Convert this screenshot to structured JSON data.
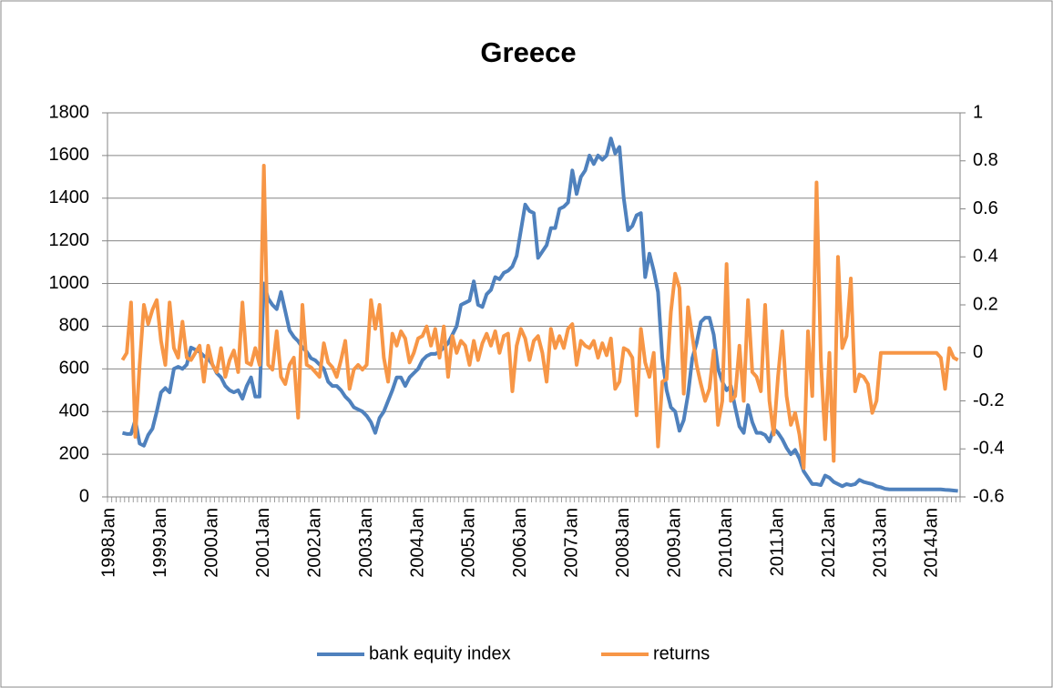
{
  "chart_data": {
    "type": "line",
    "title": "Greece",
    "categories": [
      "1998Jan",
      null,
      null,
      null,
      null,
      null,
      null,
      null,
      null,
      null,
      null,
      null,
      "1999Jan",
      null,
      null,
      null,
      null,
      null,
      null,
      null,
      null,
      null,
      null,
      null,
      "2000Jan",
      null,
      null,
      null,
      null,
      null,
      null,
      null,
      null,
      null,
      null,
      null,
      "2001Jan",
      null,
      null,
      null,
      null,
      null,
      null,
      null,
      null,
      null,
      null,
      null,
      "2002Jan",
      null,
      null,
      null,
      null,
      null,
      null,
      null,
      null,
      null,
      null,
      null,
      "2003Jan",
      null,
      null,
      null,
      null,
      null,
      null,
      null,
      null,
      null,
      null,
      null,
      "2004Jan",
      null,
      null,
      null,
      null,
      null,
      null,
      null,
      null,
      null,
      null,
      null,
      "2005Jan",
      null,
      null,
      null,
      null,
      null,
      null,
      null,
      null,
      null,
      null,
      null,
      "2006Jan",
      null,
      null,
      null,
      null,
      null,
      null,
      null,
      null,
      null,
      null,
      null,
      "2007Jan",
      null,
      null,
      null,
      null,
      null,
      null,
      null,
      null,
      null,
      null,
      null,
      "2008Jan",
      null,
      null,
      null,
      null,
      null,
      null,
      null,
      null,
      null,
      null,
      null,
      "2009Jan",
      null,
      null,
      null,
      null,
      null,
      null,
      null,
      null,
      null,
      null,
      null,
      "2010Jan",
      null,
      null,
      null,
      null,
      null,
      null,
      null,
      null,
      null,
      null,
      null,
      "2011Jan",
      null,
      null,
      null,
      null,
      null,
      null,
      null,
      null,
      null,
      null,
      null,
      "2012Jan",
      null,
      null,
      null,
      null,
      null,
      null,
      null,
      null,
      null,
      null,
      null,
      "2013Jan",
      null,
      null,
      null,
      null,
      null,
      null,
      null,
      null,
      null,
      null,
      null,
      "2014Jan",
      null,
      null,
      null,
      null,
      null,
      null
    ],
    "series": [
      {
        "name": "bank equity index",
        "color": "#4f81bd",
        "axis": "y",
        "values": [
          null,
          null,
          null,
          300,
          295,
          295,
          360,
          250,
          240,
          290,
          320,
          400,
          490,
          510,
          490,
          600,
          610,
          600,
          620,
          700,
          690,
          680,
          660,
          650,
          620,
          580,
          560,
          520,
          500,
          490,
          500,
          460,
          520,
          560,
          470,
          470,
          1000,
          930,
          900,
          880,
          960,
          870,
          780,
          750,
          730,
          700,
          680,
          650,
          640,
          620,
          600,
          540,
          520,
          520,
          500,
          470,
          450,
          420,
          410,
          400,
          380,
          350,
          300,
          370,
          400,
          450,
          500,
          560,
          560,
          520,
          560,
          580,
          600,
          640,
          660,
          670,
          670,
          680,
          700,
          720,
          760,
          800,
          900,
          910,
          920,
          1010,
          900,
          890,
          950,
          970,
          1030,
          1020,
          1050,
          1060,
          1080,
          1130,
          1250,
          1370,
          1340,
          1330,
          1120,
          1150,
          1180,
          1260,
          1260,
          1350,
          1360,
          1380,
          1530,
          1420,
          1500,
          1530,
          1600,
          1560,
          1600,
          1580,
          1600,
          1680,
          1610,
          1640,
          1400,
          1250,
          1270,
          1320,
          1330,
          1030,
          1140,
          1060,
          960,
          650,
          500,
          420,
          400,
          310,
          360,
          480,
          650,
          720,
          820,
          840,
          840,
          760,
          600,
          540,
          500,
          520,
          420,
          330,
          300,
          430,
          350,
          300,
          300,
          290,
          260,
          320,
          300,
          270,
          230,
          200,
          220,
          180,
          120,
          90,
          60,
          60,
          55,
          100,
          90,
          70,
          60,
          50,
          60,
          55,
          60,
          80,
          70,
          65,
          60,
          50,
          45,
          38,
          35,
          35,
          35,
          35,
          35,
          35,
          35,
          35,
          35,
          35,
          35,
          35,
          35,
          33,
          32,
          30,
          28
        ]
      },
      {
        "name": "returns",
        "color": "#f79646",
        "axis": "y2",
        "values": [
          null,
          null,
          null,
          -0.03,
          0.0,
          0.21,
          -0.35,
          -0.05,
          0.2,
          0.12,
          0.18,
          0.22,
          0.05,
          -0.05,
          0.21,
          0.02,
          -0.02,
          0.13,
          -0.02,
          -0.03,
          0.0,
          0.03,
          -0.12,
          0.03,
          -0.05,
          -0.08,
          0.02,
          -0.1,
          -0.03,
          0.01,
          -0.08,
          0.21,
          -0.04,
          -0.05,
          0.02,
          -0.05,
          0.78,
          -0.05,
          -0.07,
          0.09,
          -0.1,
          -0.13,
          -0.05,
          -0.02,
          -0.27,
          0.2,
          -0.05,
          -0.06,
          -0.08,
          -0.1,
          0.04,
          -0.04,
          -0.06,
          -0.1,
          -0.03,
          0.05,
          -0.15,
          -0.07,
          -0.05,
          -0.07,
          -0.05,
          0.22,
          0.1,
          0.2,
          -0.02,
          -0.12,
          0.08,
          0.03,
          0.09,
          0.06,
          -0.04,
          0.0,
          0.06,
          0.07,
          0.11,
          0.03,
          0.1,
          -0.02,
          0.11,
          -0.1,
          0.07,
          0.0,
          0.05,
          0.03,
          -0.05,
          0.05,
          -0.03,
          0.04,
          0.08,
          0.03,
          0.09,
          0.0,
          0.07,
          0.08,
          -0.16,
          0.03,
          0.1,
          0.06,
          -0.03,
          0.05,
          0.07,
          0.0,
          -0.12,
          0.1,
          0.02,
          0.07,
          0.02,
          0.1,
          0.12,
          -0.05,
          0.05,
          0.03,
          0.02,
          0.05,
          -0.02,
          0.04,
          -0.01,
          0.06,
          -0.15,
          -0.12,
          0.02,
          0.01,
          -0.02,
          -0.26,
          0.1,
          -0.04,
          -0.1,
          0.0,
          -0.39,
          -0.12,
          -0.11,
          0.17,
          0.33,
          0.27,
          -0.17,
          0.19,
          0.07,
          -0.05,
          -0.13,
          -0.2,
          -0.15,
          0.01,
          -0.3,
          -0.2,
          0.37,
          -0.2,
          -0.18,
          0.03,
          -0.2,
          0.22,
          -0.08,
          -0.1,
          -0.16,
          0.2,
          -0.2,
          -0.34,
          -0.1,
          0.09,
          -0.18,
          -0.3,
          -0.25,
          -0.34,
          -0.48,
          0.09,
          -0.18,
          0.71,
          -0.03,
          -0.36,
          0.0,
          -0.45,
          0.4,
          0.02,
          0.07,
          0.31,
          -0.16,
          -0.09,
          -0.1,
          -0.13,
          -0.25,
          -0.2,
          0.0,
          0.0,
          0.0,
          0.0,
          0.0,
          0.0,
          0.0,
          0.0,
          0.0,
          0.0,
          0.0,
          0.0,
          0.0,
          0.0,
          -0.02,
          -0.15,
          0.02,
          -0.02,
          -0.03
        ]
      }
    ],
    "ylim": [
      0,
      1800
    ],
    "yticks": [
      0,
      200,
      400,
      600,
      800,
      1000,
      1200,
      1400,
      1600,
      1800
    ],
    "y2lim": [
      -0.6,
      1
    ],
    "y2ticks": [
      -0.6,
      -0.4,
      -0.2,
      0,
      0.2,
      0.4,
      0.6,
      0.8,
      1
    ],
    "grid": true,
    "legend": "bottom"
  }
}
